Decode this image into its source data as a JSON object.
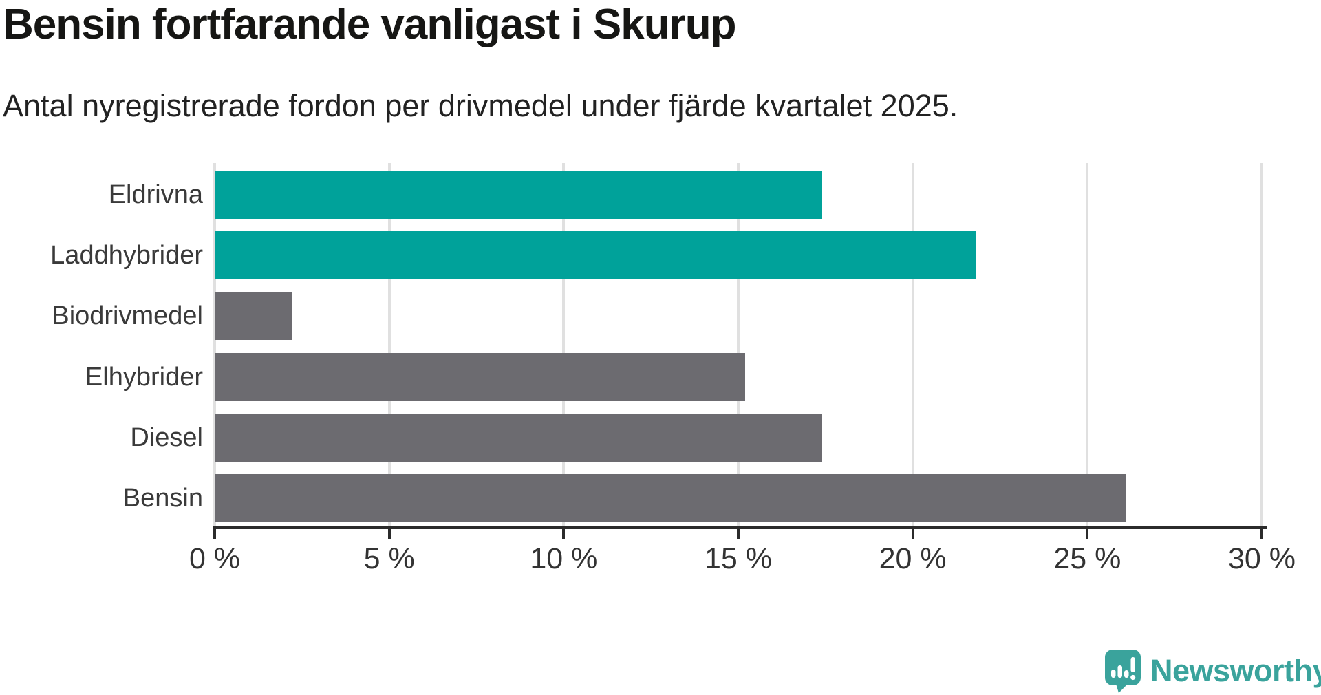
{
  "chart_data": {
    "type": "bar",
    "orientation": "horizontal",
    "title": "Bensin fortfarande vanligast i Skurup",
    "subtitle": "Antal nyregistrerade fordon per drivmedel under fjärde kvartalet 2025.",
    "categories": [
      "Eldrivna",
      "Laddhybrider",
      "Biodrivmedel",
      "Elhybrider",
      "Diesel",
      "Bensin"
    ],
    "values": [
      17.4,
      21.8,
      2.2,
      15.2,
      17.4,
      26.1
    ],
    "unit": "%",
    "xlim": [
      0,
      30
    ],
    "x_ticks": [
      0,
      5,
      10,
      15,
      20,
      25,
      30
    ],
    "x_tick_labels": [
      "0 %",
      "5 %",
      "10 %",
      "15 %",
      "20 %",
      "25 %",
      "30 %"
    ],
    "bar_colors": [
      "#00a29a",
      "#00a29a",
      "#6c6b70",
      "#6c6b70",
      "#6c6b70",
      "#6c6b70"
    ],
    "grid": true,
    "legend": false
  },
  "colors": {
    "accent_teal": "#00a29a",
    "bar_gray": "#6c6b70",
    "gridline": "#e0e0e0",
    "axis": "#2b2b2b",
    "logo_teal": "#3aa39c",
    "title_text": "#161614",
    "label_text": "#3a3a3a"
  },
  "footer": {
    "brand": "Newsworthy"
  }
}
